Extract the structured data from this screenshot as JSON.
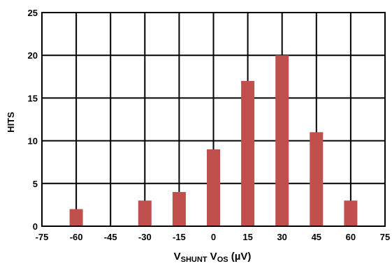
{
  "chart_data": {
    "type": "bar",
    "x": [
      -60,
      -45,
      -30,
      -15,
      0,
      15,
      30,
      45,
      60
    ],
    "values": [
      2,
      0,
      3,
      4,
      9,
      17,
      20,
      11,
      3
    ],
    "xticks": [
      "-75",
      "-60",
      "-45",
      "-30",
      "-15",
      "0",
      "15",
      "30",
      "45",
      "60",
      "75"
    ],
    "yticks": [
      "0",
      "5",
      "10",
      "15",
      "20",
      "25"
    ],
    "xlim": [
      -75,
      75
    ],
    "ylim": [
      0,
      25
    ],
    "xlabel": {
      "main": "V",
      "sub1": "SHUNT",
      "mid": " V",
      "sub2": "OS",
      "tail": " (µV)"
    },
    "ylabel": "HITS",
    "grid": true,
    "bar_color": "#c0504d"
  }
}
